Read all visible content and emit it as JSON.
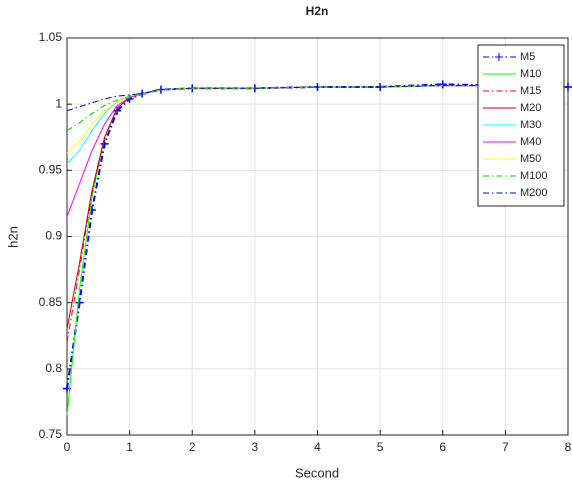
{
  "chart_data": {
    "type": "line",
    "title": "H2n",
    "x_label": "Second",
    "y_label": "h2n",
    "x": [
      0,
      0.2,
      0.4,
      0.6,
      0.8,
      1,
      1.2,
      1.5,
      2,
      3,
      4,
      5,
      6,
      7,
      8
    ],
    "series": [
      {
        "name": "M5",
        "color": "#0000ff",
        "dash": "-.",
        "marker": "+",
        "values": [
          0.785,
          0.85,
          0.92,
          0.97,
          0.995,
          1.004,
          1.008,
          1.011,
          1.012,
          1.012,
          1.013,
          1.013,
          1.015,
          1.014,
          1.013
        ]
      },
      {
        "name": "M10",
        "color": "#00ff00",
        "dash": "-",
        "values": [
          0.765,
          0.86,
          0.93,
          0.975,
          0.997,
          1.005,
          1.008,
          1.011,
          1.012,
          1.012,
          1.013,
          1.013,
          1.014,
          1.014,
          1.013
        ]
      },
      {
        "name": "M15",
        "color": "#ff0000",
        "dash": "-.",
        "values": [
          0.82,
          0.875,
          0.933,
          0.974,
          0.997,
          1.005,
          1.008,
          1.011,
          1.012,
          1.012,
          1.013,
          1.013,
          1.014,
          1.014,
          1.013
        ]
      },
      {
        "name": "M20",
        "color": "#cc0000",
        "dash": "-",
        "values": [
          0.83,
          0.88,
          0.935,
          0.975,
          0.997,
          1.005,
          1.008,
          1.011,
          1.012,
          1.012,
          1.013,
          1.013,
          1.014,
          1.014,
          1.013
        ]
      },
      {
        "name": "M30",
        "color": "#00ffff",
        "dash": "-",
        "values": [
          0.955,
          0.965,
          0.98,
          0.993,
          1.002,
          1.006,
          1.008,
          1.011,
          1.012,
          1.012,
          1.013,
          1.013,
          1.014,
          1.014,
          1.013
        ]
      },
      {
        "name": "M40",
        "color": "#ff00ff",
        "dash": "-",
        "values": [
          0.915,
          0.94,
          0.965,
          0.985,
          0.999,
          1.005,
          1.008,
          1.011,
          1.012,
          1.012,
          1.013,
          1.013,
          1.014,
          1.014,
          1.013
        ]
      },
      {
        "name": "M50",
        "color": "#ffff00",
        "dash": "-",
        "values": [
          0.963,
          0.972,
          0.985,
          0.995,
          1.002,
          1.006,
          1.008,
          1.011,
          1.012,
          1.012,
          1.013,
          1.013,
          1.014,
          1.014,
          1.013
        ]
      },
      {
        "name": "M100",
        "color": "#00cc00",
        "dash": "-.",
        "values": [
          0.98,
          0.986,
          0.993,
          0.999,
          1.003,
          1.006,
          1.008,
          1.011,
          1.012,
          1.012,
          1.013,
          1.013,
          1.014,
          1.014,
          1.013
        ]
      },
      {
        "name": "M200",
        "color": "#0000cc",
        "dash": "-.",
        "values": [
          0.995,
          0.998,
          1.001,
          1.004,
          1.006,
          1.007,
          1.008,
          1.011,
          1.012,
          1.012,
          1.013,
          1.013,
          1.014,
          1.014,
          1.013
        ]
      }
    ],
    "xlim": [
      0,
      8
    ],
    "xticks": [
      0,
      1,
      2,
      3,
      4,
      5,
      6,
      7,
      8
    ],
    "ylim": [
      0.75,
      1.05
    ],
    "yticks": [
      0.75,
      0.8,
      0.85,
      0.9,
      0.95,
      1,
      1.05
    ],
    "grid": true,
    "legend_position": "northeast"
  }
}
